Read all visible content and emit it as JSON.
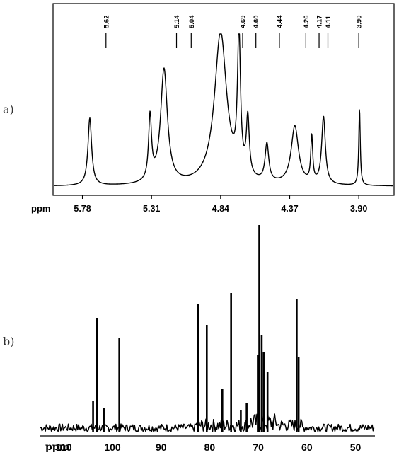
{
  "panels": {
    "a_label": "a)",
    "b_label": "b)"
  },
  "chart_data": [
    {
      "type": "line",
      "title": "",
      "xlabel": "ppm",
      "ylabel": "",
      "x_reversed": true,
      "xlim": [
        5.98,
        3.66
      ],
      "xticks": [
        {
          "value": 5.78,
          "label": "5.78"
        },
        {
          "value": 5.31,
          "label": "5.31"
        },
        {
          "value": 4.84,
          "label": "4.84"
        },
        {
          "value": 4.37,
          "label": "4.37"
        },
        {
          "value": 3.9,
          "label": "3.90"
        }
      ],
      "peak_labels": [
        {
          "ppm": 5.62,
          "label": "5.62"
        },
        {
          "ppm": 5.14,
          "label": "5.14"
        },
        {
          "ppm": 5.04,
          "label": "5.04"
        },
        {
          "ppm": 4.69,
          "label": "4.69"
        },
        {
          "ppm": 4.6,
          "label": "4.60"
        },
        {
          "ppm": 4.44,
          "label": "4.44"
        },
        {
          "ppm": 4.26,
          "label": "4.26"
        },
        {
          "ppm": 4.17,
          "label": "4.17"
        },
        {
          "ppm": 4.11,
          "label": "4.11"
        },
        {
          "ppm": 3.9,
          "label": "3.90"
        }
      ],
      "series": [
        {
          "peaks": [
            {
              "ppm": 5.73,
              "height": 0.43,
              "width": 0.015
            },
            {
              "ppm": 5.32,
              "height": 0.41,
              "width": 0.012
            },
            {
              "ppm": 5.225,
              "height": 0.73,
              "width": 0.028
            },
            {
              "ppm": 4.84,
              "height": 0.97,
              "width": 0.05
            },
            {
              "ppm": 4.715,
              "height": 0.9,
              "width": 0.012
            },
            {
              "ppm": 4.655,
              "height": 0.37,
              "width": 0.012
            },
            {
              "ppm": 4.525,
              "height": 0.24,
              "width": 0.015
            },
            {
              "ppm": 4.335,
              "height": 0.37,
              "width": 0.03
            },
            {
              "ppm": 4.22,
              "height": 0.29,
              "width": 0.008
            },
            {
              "ppm": 4.14,
              "height": 0.43,
              "width": 0.015
            },
            {
              "ppm": 3.895,
              "height": 0.49,
              "width": 0.006
            }
          ],
          "baseline": 0.03
        }
      ]
    },
    {
      "type": "line",
      "title": "",
      "xlabel": "ppm",
      "ylabel": "",
      "x_reversed": true,
      "xlim": [
        115,
        46
      ],
      "xticks": [
        {
          "value": 110,
          "label": "110"
        },
        {
          "value": 100,
          "label": "100"
        },
        {
          "value": 90,
          "label": "90"
        },
        {
          "value": 80,
          "label": "80"
        },
        {
          "value": 70,
          "label": "70"
        },
        {
          "value": 60,
          "label": "60"
        },
        {
          "value": 50,
          "label": "50"
        }
      ],
      "series": [
        {
          "peaks": [
            {
              "ppm": 104.0,
              "height": 0.15
            },
            {
              "ppm": 103.2,
              "height": 0.54
            },
            {
              "ppm": 101.8,
              "height": 0.12
            },
            {
              "ppm": 98.6,
              "height": 0.45
            },
            {
              "ppm": 82.4,
              "height": 0.61
            },
            {
              "ppm": 80.6,
              "height": 0.51
            },
            {
              "ppm": 77.4,
              "height": 0.21
            },
            {
              "ppm": 75.6,
              "height": 0.66
            },
            {
              "ppm": 73.6,
              "height": 0.11
            },
            {
              "ppm": 72.4,
              "height": 0.14
            },
            {
              "ppm": 70.1,
              "height": 0.37
            },
            {
              "ppm": 69.8,
              "height": 0.98
            },
            {
              "ppm": 69.3,
              "height": 0.46
            },
            {
              "ppm": 68.9,
              "height": 0.38
            },
            {
              "ppm": 68.1,
              "height": 0.29
            },
            {
              "ppm": 62.1,
              "height": 0.63
            },
            {
              "ppm": 61.7,
              "height": 0.36
            }
          ]
        }
      ]
    }
  ]
}
